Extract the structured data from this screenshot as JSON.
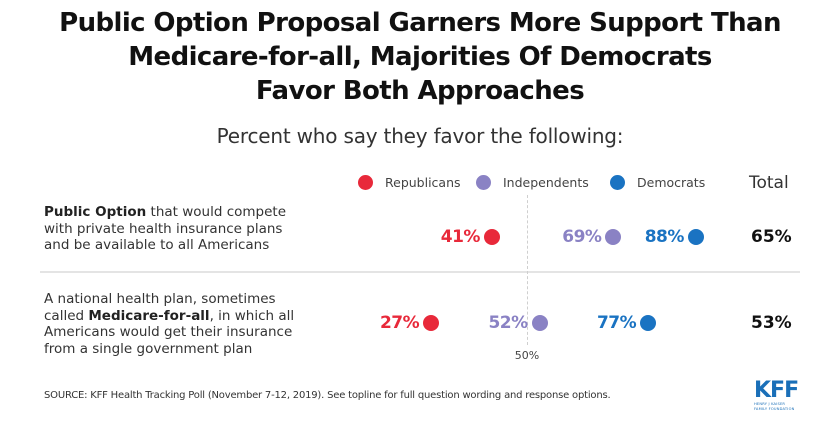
{
  "chart_data": {
    "type": "dot-plot",
    "title": "Public Option Proposal Garners More Support Than Medicare-for-all, Majorities Of Democrats Favor Both Approaches",
    "title_lines": [
      "Public Option Proposal Garners More Support Than",
      "Medicare-for-all, Majorities Of Democrats",
      "Favor Both Approaches"
    ],
    "subtitle": "Percent who say they favor the following:",
    "xlabel": "",
    "ylabel": "",
    "xlim": [
      0,
      100
    ],
    "reference_line": {
      "value": 50,
      "label": "50%"
    },
    "legend_position": "top",
    "total_header": "Total",
    "series": [
      {
        "name": "Republicans",
        "color": "#e8293a",
        "values": [
          41,
          27
        ]
      },
      {
        "name": "Independents",
        "color": "#8a82c4",
        "values": [
          69,
          52
        ]
      },
      {
        "name": "Democrats",
        "color": "#1a73c2",
        "values": [
          88,
          77
        ]
      }
    ],
    "categories": [
      {
        "bold": "Public Option",
        "pre": "",
        "post": " that would compete with private health insurance plans and be available to all Americans",
        "lines": [
          {
            "pre": "",
            "bold": "Public Option",
            "post": " that would compete"
          },
          {
            "pre": "with private health insurance plans",
            "bold": "",
            "post": ""
          },
          {
            "pre": "and be available to all Americans",
            "bold": "",
            "post": ""
          }
        ],
        "total": "65%"
      },
      {
        "bold": "Medicare-for-all",
        "lines": [
          {
            "pre": "A national health plan, sometimes",
            "bold": "",
            "post": ""
          },
          {
            "pre": "called ",
            "bold": "Medicare-for-all",
            "post": ", in which all"
          },
          {
            "pre": "Americans would get their insurance",
            "bold": "",
            "post": ""
          },
          {
            "pre": "from a single government plan",
            "bold": "",
            "post": ""
          }
        ],
        "total": "53%"
      }
    ],
    "value_labels": [
      [
        "41%",
        "69%",
        "88%"
      ],
      [
        "27%",
        "52%",
        "77%"
      ]
    ],
    "source": "SOURCE: KFF Health Tracking Poll (November 7-12, 2019). See topline for full question wording and response options."
  },
  "logo": {
    "main": "KFF",
    "sub_lines": [
      "HENRY J KAISER",
      "FAMILY FOUNDATION"
    ]
  }
}
